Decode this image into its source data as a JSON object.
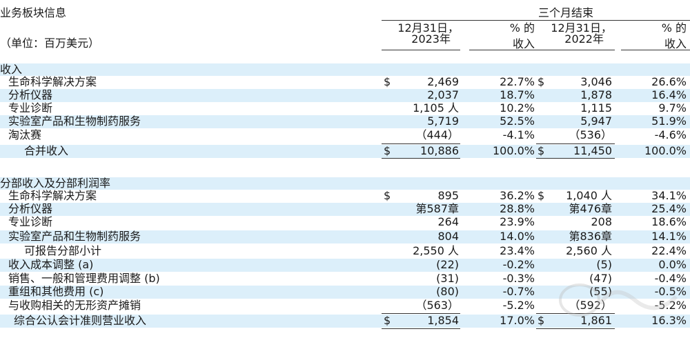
{
  "header": {
    "title": "业务板块信息",
    "unit": "（单位：百万美元）",
    "period": "三个月结束",
    "col1": [
      "12月31日，",
      "2023年"
    ],
    "col2": [
      "% 的",
      "收入"
    ],
    "col3": [
      "12月31日，",
      "2022年"
    ],
    "col4": [
      "% 的",
      "收入"
    ]
  },
  "sections": [
    {
      "title": "收入"
    },
    {
      "title": "分部收入及分部利润率"
    }
  ],
  "currency": "$",
  "rows": [
    {
      "label": "生命科学解决方案",
      "v1": "2,469",
      "p1": "22.7%",
      "v2": "3,046",
      "p2": "26.6%",
      "dollar1": "$",
      "dollar2": "$"
    },
    {
      "label": "分析仪器",
      "v1": "2,037",
      "p1": "18.7%",
      "v2": "1,878",
      "p2": "16.4%"
    },
    {
      "label": "专业诊断",
      "v1": "1,105 人",
      "p1": "10.2%",
      "v2": "1,115",
      "p2": "9.7%"
    },
    {
      "label": "实验室产品和生物制药服务",
      "v1": "5,719",
      "p1": "52.5%",
      "v2": "5,947",
      "p2": "51.9%"
    },
    {
      "label": "淘汰赛",
      "v1": "（444）",
      "p1": "-4.1%",
      "v2": "（536）",
      "p2": "-4.6%"
    },
    {
      "label": "合并收入",
      "v1": "10,886",
      "p1": "100.0%",
      "v2": "11,450",
      "p2": "100.0%",
      "dollar1": "$",
      "dollar2": "$"
    },
    {
      "label": "生命科学解决方案",
      "v1": "895",
      "p1": "36.2%",
      "v2": "1,040 人",
      "p2": "34.1%",
      "dollar1": "$",
      "dollar2": "$"
    },
    {
      "label": "分析仪器",
      "v1": "第587章",
      "p1": "28.8%",
      "v2": "第476章",
      "p2": "25.4%"
    },
    {
      "label": "专业诊断",
      "v1": "264",
      "p1": "23.9%",
      "v2": "208",
      "p2": "18.6%"
    },
    {
      "label": "实验室产品和生物制药服务",
      "v1": "804",
      "p1": "14.0%",
      "v2": "第836章",
      "p2": "14.1%"
    },
    {
      "label": "可报告分部小计",
      "v1": "2,550 人",
      "p1": "23.4%",
      "v2": "2,560 人",
      "p2": "22.4%"
    },
    {
      "label": "收入成本调整 (a)",
      "v1": "(22)",
      "p1": "-0.2%",
      "v2": "(5)",
      "p2": "0.0%"
    },
    {
      "label": "销售、一般和管理费用调整 (b)",
      "v1": "(31)",
      "p1": "-0.3%",
      "v2": "(47)",
      "p2": "-0.4%"
    },
    {
      "label": "重组和其他费用 (c)",
      "v1": "(80)",
      "p1": "-0.7%",
      "v2": "(55)",
      "p2": "-0.5%"
    },
    {
      "label": "与收购相关的无形资产摊销",
      "v1": "（563）",
      "p1": "-5.2%",
      "v2": "（592）",
      "p2": "-5.2%"
    },
    {
      "label": "综合公认会计准则营业收入",
      "v1": "1,854",
      "p1": "17.0%",
      "v2": "1,861",
      "p2": "16.3%",
      "dollar1": "$",
      "dollar2": "$"
    }
  ]
}
